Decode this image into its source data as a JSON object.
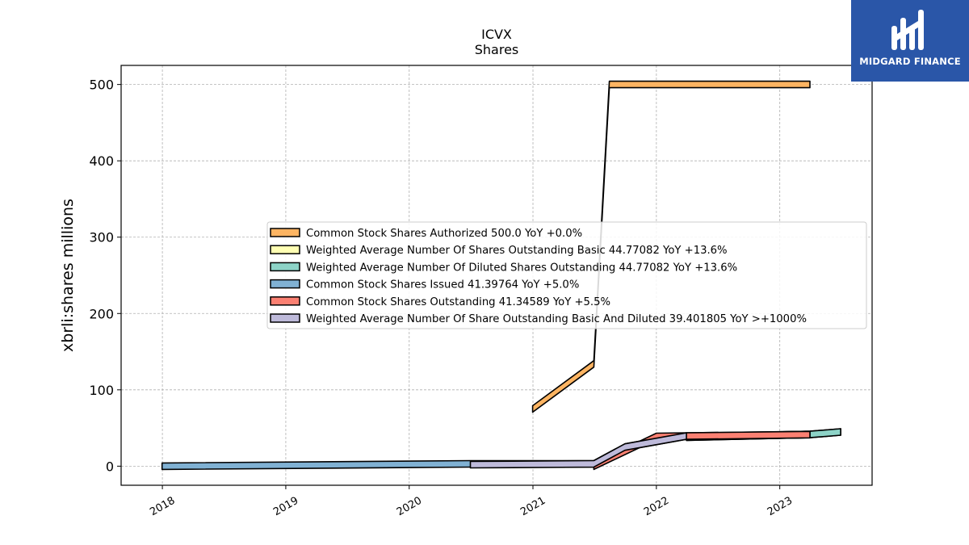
{
  "logo": {
    "text": "MIDGARD FINANCE",
    "background": "#2a56a8"
  },
  "chart_data": {
    "type": "area",
    "title": "ICVX",
    "subtitle": "Shares",
    "xlabel": "",
    "ylabel": "xbrli:shares millions",
    "xlim": [
      "2017-09-01",
      "2023-10-01"
    ],
    "ylim": [
      -25,
      525
    ],
    "yticks": [
      0,
      100,
      200,
      300,
      400,
      500
    ],
    "xticks": [
      "2018",
      "2019",
      "2020",
      "2021",
      "2022",
      "2023"
    ],
    "grid": true,
    "legend_position": "center-right",
    "series": [
      {
        "name": "Common Stock Shares Authorized  500.0 YoY +0.0%",
        "color": "#fdb462",
        "points": [
          [
            "2020-12-31",
            75
          ],
          [
            "2021-06-30",
            134
          ],
          [
            "2021-08-15",
            500
          ],
          [
            "2023-03-31",
            500
          ]
        ]
      },
      {
        "name": "Weighted Average Number Of Shares Outstanding Basic  44.77082 YoY +13.6%",
        "color": "#ffffb3",
        "points": [
          [
            "2022-03-31",
            38
          ],
          [
            "2023-03-31",
            41.5
          ],
          [
            "2023-06-30",
            44.77
          ]
        ]
      },
      {
        "name": "Weighted Average Number Of Diluted Shares Outstanding  44.77082 YoY +13.6%",
        "color": "#8dd3c7",
        "points": [
          [
            "2022-03-31",
            38
          ],
          [
            "2023-03-31",
            41.5
          ],
          [
            "2023-06-30",
            44.77
          ]
        ]
      },
      {
        "name": "Common Stock Shares Issued  41.39764 YoY +5.0%",
        "color": "#80b1d3",
        "points": [
          [
            "2017-12-31",
            0
          ],
          [
            "2020-06-30",
            3
          ],
          [
            "2021-06-30",
            3
          ],
          [
            "2021-09-30",
            25
          ],
          [
            "2022-03-31",
            39.4
          ],
          [
            "2023-03-31",
            41.4
          ]
        ]
      },
      {
        "name": "Common Stock Shares Outstanding  41.34589 YoY +5.5%",
        "color": "#fb8072",
        "points": [
          [
            "2021-06-30",
            0
          ],
          [
            "2022-01-01",
            39
          ],
          [
            "2023-03-31",
            41.35
          ]
        ]
      },
      {
        "name": "Weighted Average Number Of Share Outstanding Basic And Diluted  39.401805 YoY >+1000%",
        "color": "#bebada",
        "points": [
          [
            "2020-06-30",
            2
          ],
          [
            "2021-06-30",
            3
          ],
          [
            "2021-09-30",
            25
          ],
          [
            "2022-03-31",
            39.4
          ]
        ]
      }
    ]
  }
}
